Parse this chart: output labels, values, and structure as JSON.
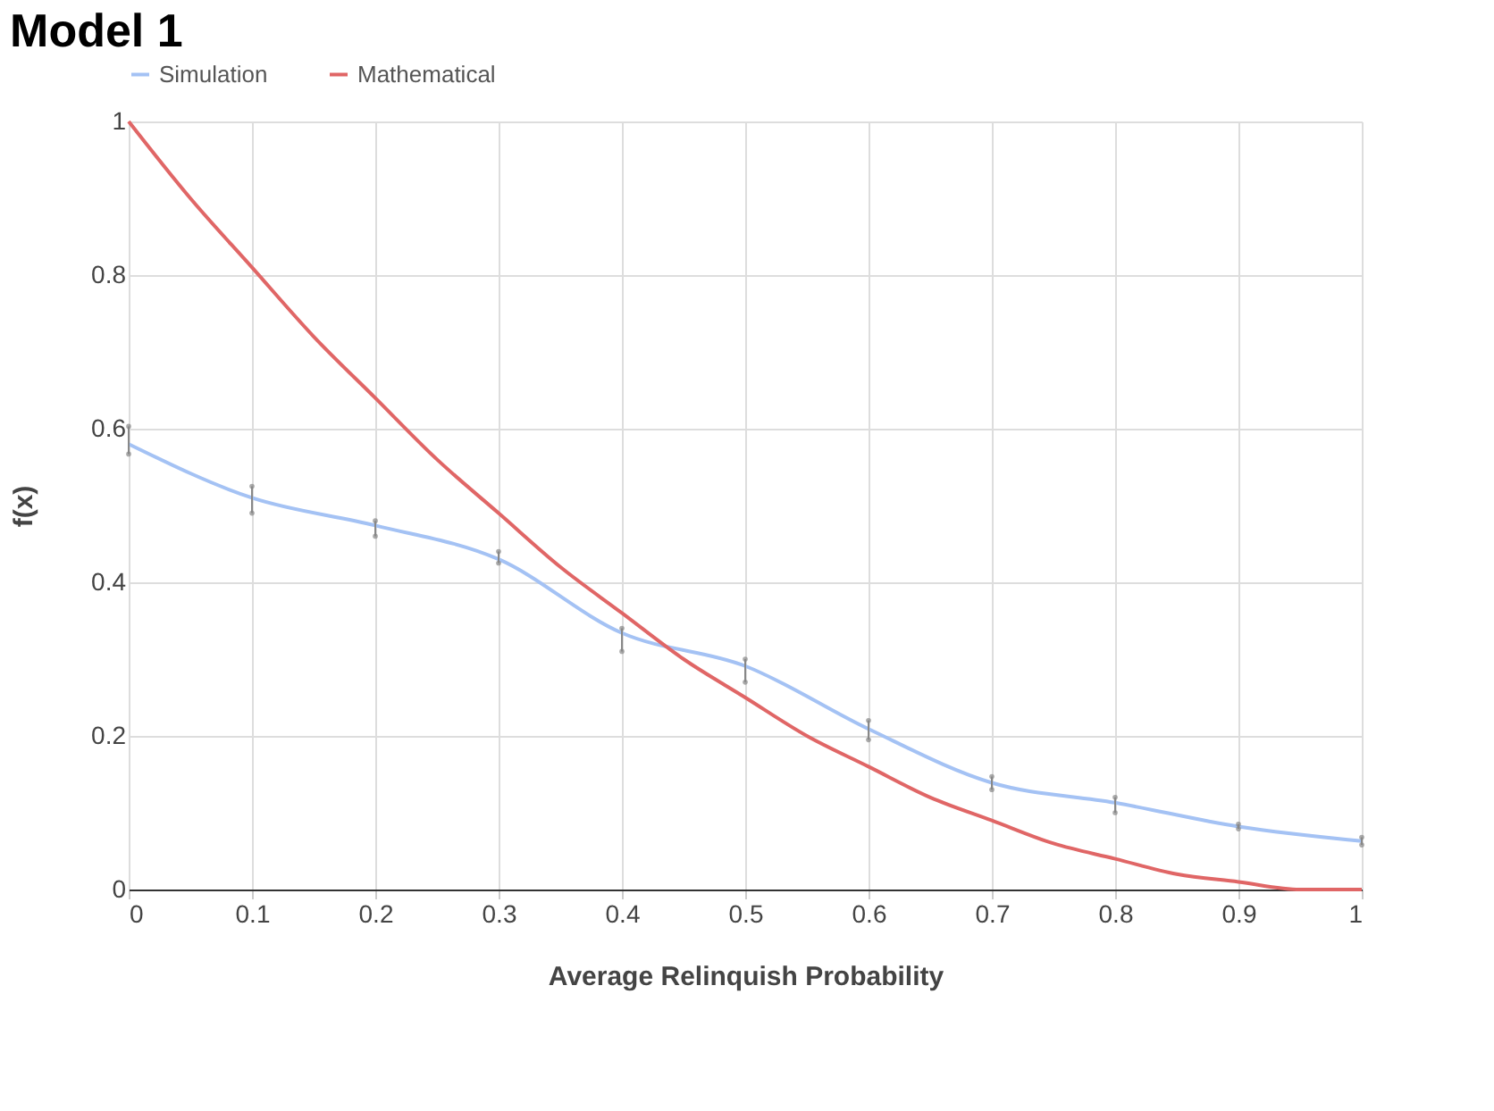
{
  "chart_data": {
    "type": "line",
    "title": "Model 1",
    "xlabel": "Average Relinquish Probability",
    "ylabel": "f(x)",
    "xlim": [
      0,
      1
    ],
    "xticks": [
      0,
      0.1,
      0.2,
      0.3,
      0.4,
      0.5,
      0.6,
      0.7,
      0.8,
      0.9,
      1
    ],
    "ylim": [
      0,
      1
    ],
    "yticks": [
      0,
      0.2,
      0.4,
      0.6,
      0.8,
      1
    ],
    "grid": true,
    "legend": "top left",
    "marker": "none",
    "line_style": "solid",
    "series": [
      {
        "name": "Simulation",
        "color": "#a4c2f4",
        "x": [
          0,
          0.1,
          0.2,
          0.3,
          0.4,
          0.5,
          0.6,
          0.7,
          0.8,
          0.9,
          1
        ],
        "values": [
          0.58,
          0.51,
          0.474,
          0.43,
          0.334,
          0.291,
          0.209,
          0.139,
          0.113,
          0.082,
          0.063
        ],
        "errors": [
          [
            0.567,
            0.603
          ],
          [
            0.49,
            0.525
          ],
          [
            0.46,
            0.48
          ],
          [
            0.425,
            0.44
          ],
          [
            0.31,
            0.34
          ],
          [
            0.27,
            0.3
          ],
          [
            0.195,
            0.22
          ],
          [
            0.13,
            0.147
          ],
          [
            0.1,
            0.12
          ],
          [
            0.079,
            0.085
          ],
          [
            0.058,
            0.068
          ]
        ]
      },
      {
        "name": "Mathematical",
        "color": "#e06666",
        "x": [
          0,
          0.05,
          0.1,
          0.15,
          0.2,
          0.25,
          0.3,
          0.35,
          0.4,
          0.45,
          0.5,
          0.55,
          0.6,
          0.65,
          0.7,
          0.75,
          0.8,
          0.85,
          0.9,
          0.95,
          1
        ],
        "values": [
          1,
          0.9,
          0.81,
          0.72,
          0.64,
          0.56,
          0.49,
          0.42,
          0.36,
          0.3,
          0.25,
          0.2,
          0.16,
          0.12,
          0.09,
          0.06,
          0.04,
          0.02,
          0.01,
          0,
          0
        ]
      }
    ]
  }
}
